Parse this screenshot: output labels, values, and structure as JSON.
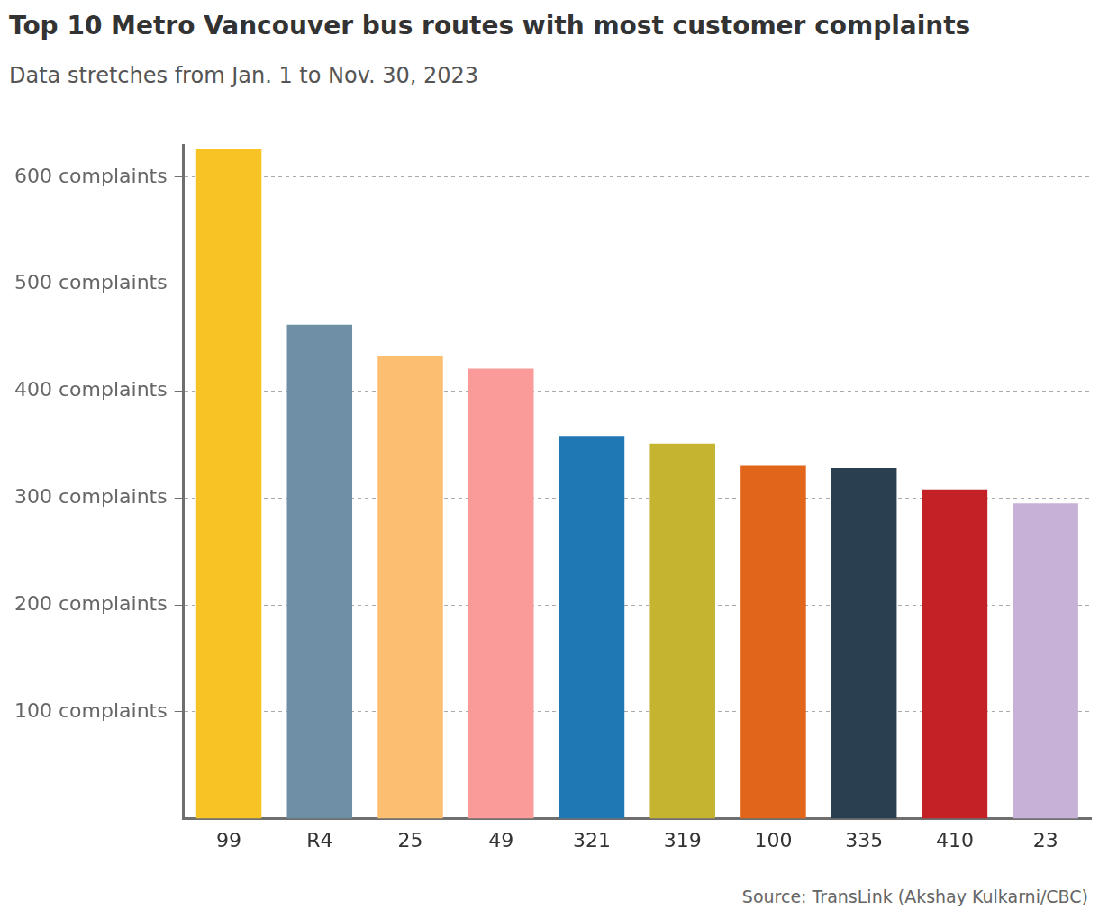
{
  "chart_data": {
    "type": "bar",
    "title": "Top 10 Metro Vancouver bus routes with most customer complaints",
    "subtitle": "Data stretches from Jan. 1 to Nov. 30, 2023",
    "source": "Source: TransLink (Akshay Kulkarni/CBC)",
    "categories": [
      "99",
      "R4",
      "25",
      "49",
      "321",
      "319",
      "100",
      "335",
      "410",
      "23"
    ],
    "values": [
      626,
      462,
      433,
      421,
      358,
      351,
      330,
      328,
      308,
      295
    ],
    "colors": [
      "#f7c325",
      "#6e8fa5",
      "#fcbf72",
      "#fa9b9a",
      "#1f78b4",
      "#c5b430",
      "#e1661b",
      "#2a4050",
      "#c42127",
      "#c8b1d6"
    ],
    "ylim": [
      0,
      630
    ],
    "yticks": [
      {
        "value": 100,
        "label": "100 complaints"
      },
      {
        "value": 200,
        "label": "200 complaints"
      },
      {
        "value": 300,
        "label": "300 complaints"
      },
      {
        "value": 400,
        "label": "400 complaints"
      },
      {
        "value": 500,
        "label": "500 complaints"
      },
      {
        "value": 600,
        "label": "600 complaints"
      }
    ],
    "grid": true
  }
}
